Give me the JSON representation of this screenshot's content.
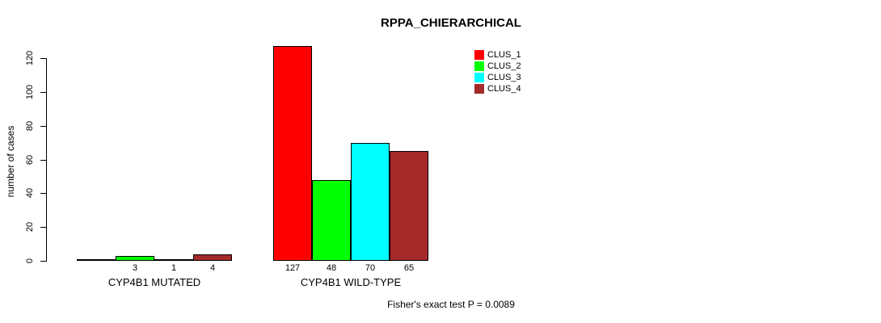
{
  "page": {
    "background_color": "#FFFFFF",
    "text_color": "#000000"
  },
  "chart_data": {
    "type": "bar",
    "title": "RPPA_CHIERARCHICAL",
    "xlabel": "",
    "ylabel": "number of cases",
    "yticks": [
      0,
      20,
      40,
      60,
      80,
      100,
      120
    ],
    "ylim": [
      0,
      130
    ],
    "axis_max_tick": 120,
    "grid": "off",
    "legend": {
      "position": "top-right",
      "entries": [
        {
          "label": "CLUS_1",
          "color": "#FF0000"
        },
        {
          "label": "CLUS_2",
          "color": "#00FF00"
        },
        {
          "label": "CLUS_3",
          "color": "#00FFFF"
        },
        {
          "label": "CLUS_4",
          "color": "#A52A2A"
        }
      ]
    },
    "groups": [
      {
        "label": "CYP4B1 MUTATED",
        "values": [
          0,
          3,
          1,
          4
        ],
        "value_labels": [
          "",
          "3",
          "1",
          "4"
        ]
      },
      {
        "label": "CYP4B1 WILD-TYPE",
        "values": [
          127,
          48,
          70,
          65
        ],
        "value_labels": [
          "127",
          "48",
          "70",
          "65"
        ]
      }
    ],
    "bar_border_color": "#000000",
    "footnote": "Fisher's exact test P = 0.0089"
  }
}
